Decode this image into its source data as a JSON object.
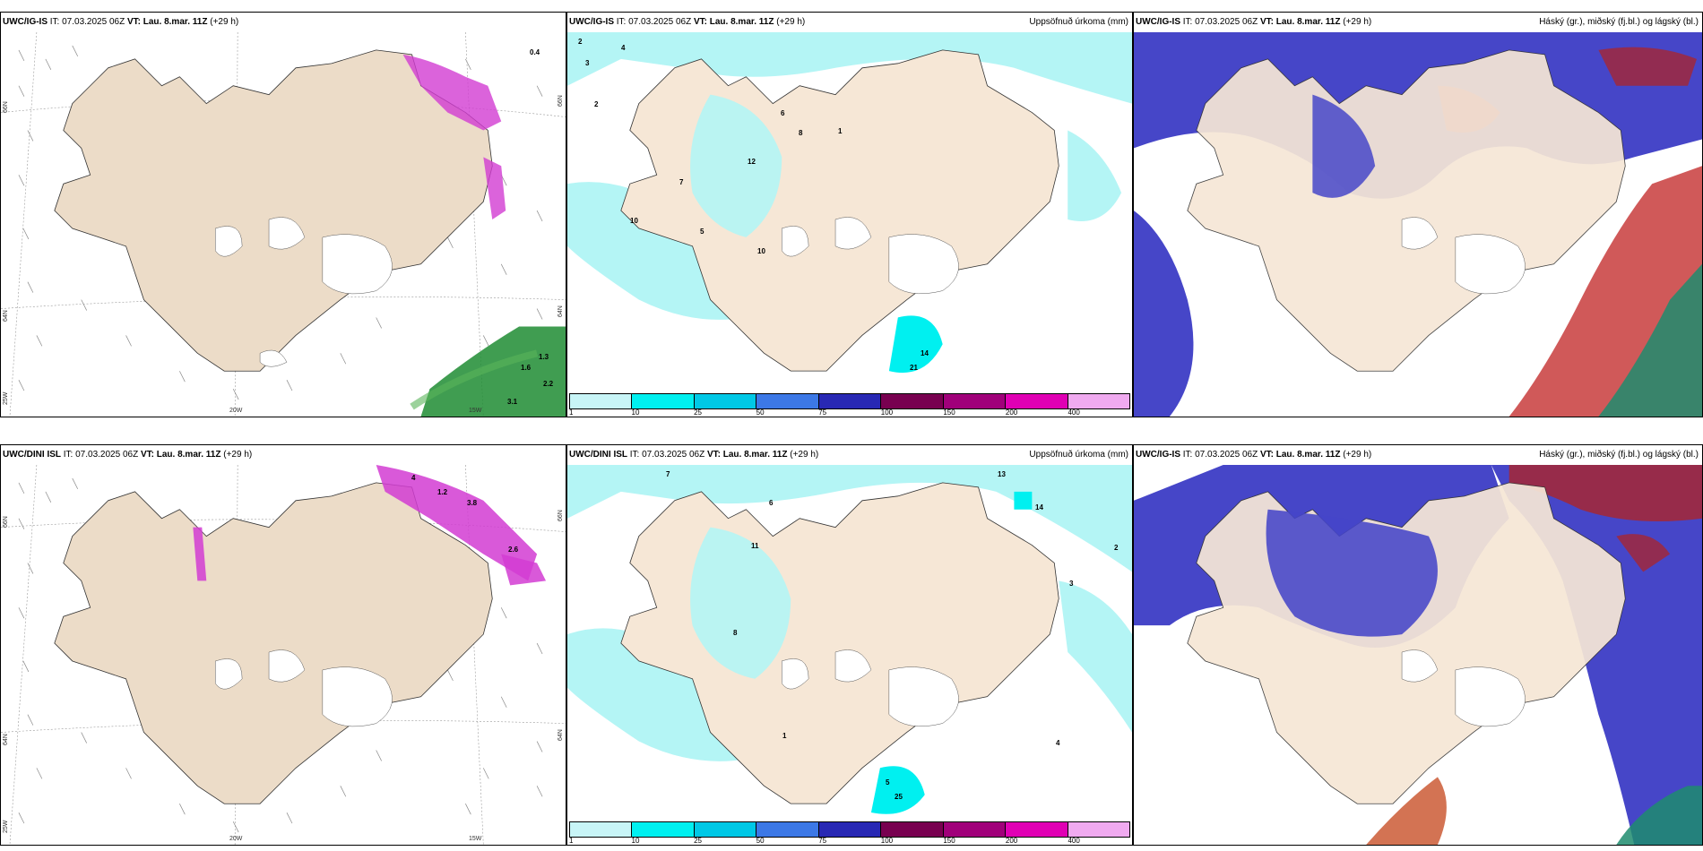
{
  "panels": [
    {
      "id": "ig-wind",
      "model": "UWC/IG-IS",
      "it_label": "IT:",
      "it_value": "07.03.2025 06Z",
      "vt_label": "VT:",
      "vt_value": "Lau. 8.mar. 11Z",
      "lead": "(+29 h)",
      "title_right": "",
      "axis_labels": [
        "66N",
        "64N",
        "25W",
        "20W",
        "15W",
        "66N",
        "64N"
      ],
      "values": [
        "0.4",
        "1.6",
        "2.2",
        "3.1",
        "1.3"
      ]
    },
    {
      "id": "ig-precip",
      "model": "UWC/IG-IS",
      "it_label": "IT:",
      "it_value": "07.03.2025 06Z",
      "vt_label": "VT:",
      "vt_value": "Lau. 8.mar. 11Z",
      "lead": "(+29 h)",
      "title_right": "Uppsöfnuð úrkoma (mm)",
      "values": [
        "2",
        "4",
        "3",
        "2",
        "10",
        "12",
        "10",
        "14",
        "21",
        "5",
        "6",
        "8",
        "1",
        "7"
      ]
    },
    {
      "id": "ig-cloud",
      "model": "UWC/IG-IS",
      "it_label": "IT:",
      "it_value": "07.03.2025 06Z",
      "vt_label": "VT:",
      "vt_value": "Lau. 8.mar. 11Z",
      "lead": "(+29 h)",
      "title_right": "Háský (gr.), miðský (fj.bl.) og lágský (bl.)"
    },
    {
      "id": "dini-wind",
      "model": "UWC/DINI ISL",
      "it_label": "IT:",
      "it_value": "07.03.2025 06Z",
      "vt_label": "VT:",
      "vt_value": "Lau. 8.mar. 11Z",
      "lead": "(+29 h)",
      "title_right": "",
      "axis_labels": [
        "66N",
        "64N",
        "25W",
        "20W",
        "15W",
        "66N",
        "64N"
      ],
      "values": [
        "3.8",
        "2.6",
        "1.2",
        "4"
      ]
    },
    {
      "id": "dini-precip",
      "model": "UWC/DINI ISL",
      "it_label": "IT:",
      "it_value": "07.03.2025 06Z",
      "vt_label": "VT:",
      "vt_value": "Lau. 8.mar. 11Z",
      "lead": "(+29 h)",
      "title_right": "Uppsöfnuð úrkoma (mm)",
      "values": [
        "13",
        "14",
        "11",
        "25",
        "5",
        "6",
        "7",
        "4",
        "3",
        "2",
        "1",
        "8"
      ]
    },
    {
      "id": "dini-cloud",
      "model": "UWC/IG-IS",
      "it_label": "IT:",
      "it_value": "07.03.2025 06Z",
      "vt_label": "VT:",
      "vt_value": "Lau. 8.mar. 11Z",
      "lead": "(+29 h)",
      "title_right": "Háský (gr.), miðský (fj.bl.) og lágský (bl.)"
    }
  ],
  "precip_legend": {
    "labels": [
      "1",
      "10",
      "25",
      "50",
      "75",
      "100",
      "150",
      "200",
      "400"
    ],
    "colors": [
      "#c8f5f7",
      "#00f0f0",
      "#00c8e6",
      "#3c78e6",
      "#2828b4",
      "#780050",
      "#a0007a",
      "#e000b4",
      "#f0aaf0"
    ]
  },
  "colors": {
    "land": "#f6e7d6",
    "land_gray": "#ecdcc8",
    "glacier": "#ffffff",
    "precip_light": "#b4f5f5",
    "cloud_low": "#4646c8",
    "cloud_high": "#c82828",
    "cloud_mid": "#1e8c6e",
    "sleet_pink": "#d23cd2",
    "rain_green": "#1e8c32"
  }
}
